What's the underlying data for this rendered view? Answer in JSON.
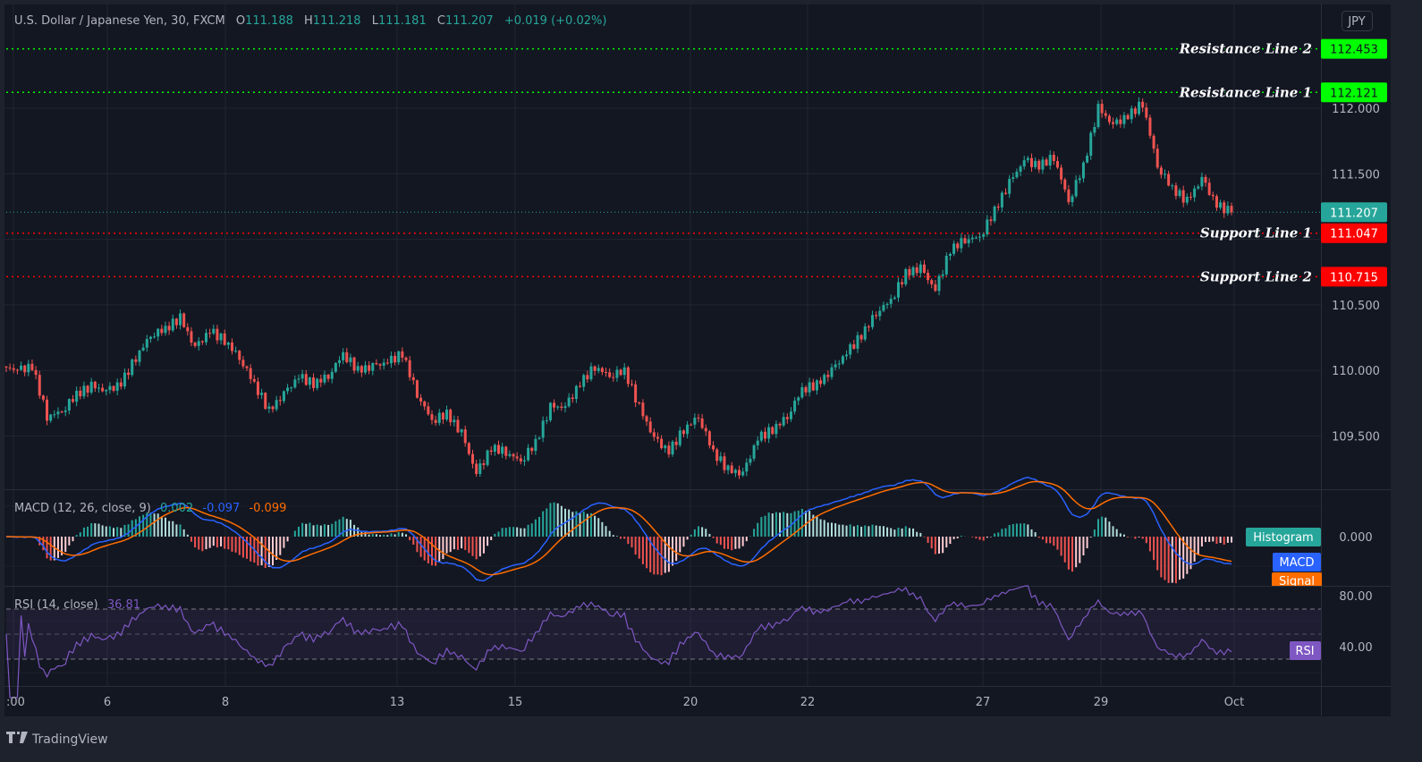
{
  "header": {
    "symbol": "U.S. Dollar / Japanese Yen, 30, FXCM",
    "o_label": "O",
    "o": "111.188",
    "h_label": "H",
    "h": "111.218",
    "l_label": "L",
    "l": "111.181",
    "c_label": "C",
    "c": "111.207",
    "change": "+0.019 (+0.02%)"
  },
  "currency_button": "JPY",
  "colors": {
    "background": "#131722",
    "up": "#26a69a",
    "down": "#ef5350",
    "grid": "#2a2e39",
    "resistance": "#00ff00",
    "support": "#ff0000",
    "macd": "#2962ff",
    "signal": "#ff6d00",
    "rsi": "#7e57c2"
  },
  "chart_data": [
    {
      "type": "candlestick",
      "title": "U.S. Dollar / Japanese Yen, 30, FXCM",
      "ylim": [
        109.1,
        112.5
      ],
      "y_ticks": [
        "112.000",
        "111.500",
        "110.500",
        "110.000",
        "109.500"
      ],
      "x_ticks": [
        ":00",
        "6",
        "8",
        "13",
        "15",
        "20",
        "22",
        "27",
        "29",
        "Oct"
      ],
      "closes": [
        110.03,
        110.0,
        110.03,
        109.65,
        109.69,
        109.82,
        109.88,
        109.84,
        109.9,
        110.1,
        110.27,
        110.32,
        110.4,
        110.17,
        110.3,
        110.23,
        110.1,
        109.9,
        109.69,
        109.82,
        109.95,
        109.9,
        109.96,
        110.13,
        110.0,
        110.03,
        110.06,
        110.13,
        109.82,
        109.62,
        109.67,
        109.52,
        109.21,
        109.41,
        109.38,
        109.31,
        109.45,
        109.72,
        109.72,
        109.9,
        110.03,
        109.96,
        110.0,
        109.72,
        109.48,
        109.38,
        109.55,
        109.65,
        109.38,
        109.24,
        109.21,
        109.48,
        109.55,
        109.65,
        109.86,
        109.89,
        110.0,
        110.13,
        110.27,
        110.44,
        110.54,
        110.74,
        110.78,
        110.61,
        110.92,
        111.0,
        111.02,
        111.22,
        111.43,
        111.6,
        111.56,
        111.63,
        111.29,
        111.56,
        112.0,
        111.87,
        111.94,
        112.04,
        111.56,
        111.39,
        111.29,
        111.46,
        111.26,
        111.207
      ],
      "last_price": {
        "label": "111.207",
        "value": 111.207
      },
      "levels": [
        {
          "name": "Resistance Line 2",
          "value": 112.453,
          "label": "112.453",
          "kind": "resistance"
        },
        {
          "name": "Resistance Line 1",
          "value": 112.121,
          "label": "112.121",
          "kind": "resistance"
        },
        {
          "name": "Support Line 1",
          "value": 111.047,
          "label": "111.047",
          "kind": "support"
        },
        {
          "name": "Support Line 2",
          "value": 110.715,
          "label": "110.715",
          "kind": "support"
        }
      ]
    },
    {
      "type": "line",
      "title": "MACD (12, 26, close, 9)",
      "values": {
        "histogram": "0.002",
        "macd": "-0.097",
        "signal": "-0.099"
      },
      "y_ticks": [
        "0.000"
      ],
      "legend": [
        "Histogram",
        "MACD",
        "Signal"
      ]
    },
    {
      "type": "line",
      "title": "RSI (14, close)",
      "value": "36.81",
      "y_ticks": [
        "80.00",
        "40.00"
      ],
      "bands": [
        70,
        50,
        30
      ],
      "legend": [
        "RSI"
      ]
    }
  ],
  "footer": {
    "brand": "TradingView"
  }
}
